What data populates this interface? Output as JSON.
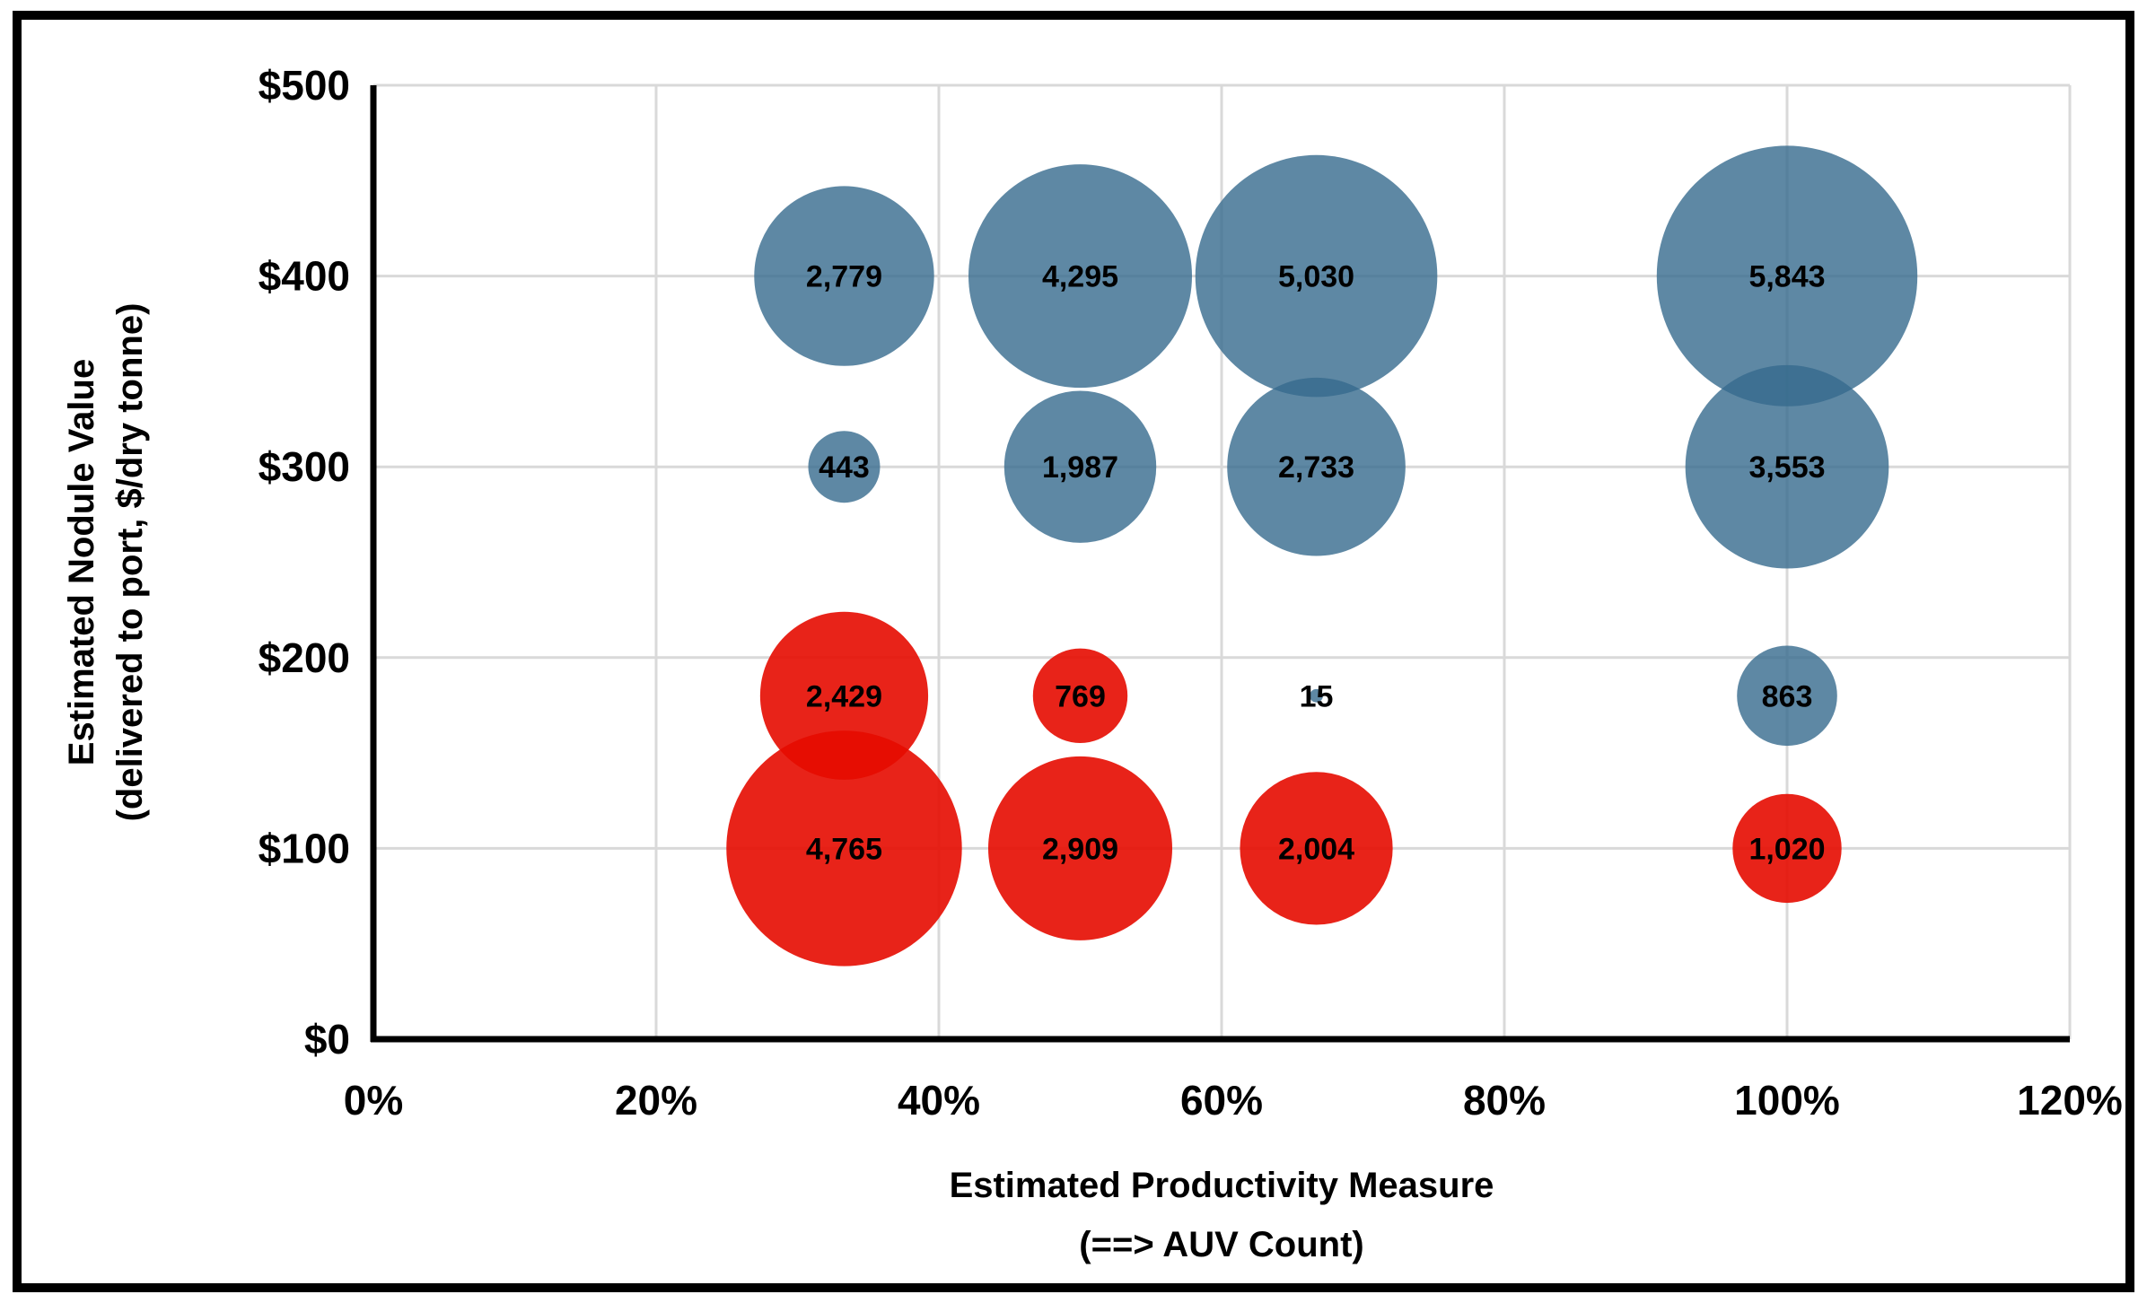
{
  "chart_data": {
    "type": "bubble",
    "title": "",
    "x_axis": {
      "title_lines": [
        "Estimated Productivity Measure",
        "(==> AUV Count)"
      ],
      "lim": [
        0,
        120
      ],
      "ticks": [
        {
          "v": 0,
          "label": "0%"
        },
        {
          "v": 20,
          "label": "20%"
        },
        {
          "v": 40,
          "label": "40%"
        },
        {
          "v": 60,
          "label": "60%"
        },
        {
          "v": 80,
          "label": "80%"
        },
        {
          "v": 100,
          "label": "100%"
        },
        {
          "v": 120,
          "label": "120%"
        }
      ]
    },
    "y_axis": {
      "title_lines": [
        "Estimated Nodule Value",
        "(delivered to port, $/dry tonne)"
      ],
      "lim": [
        0,
        500
      ],
      "ticks": [
        {
          "v": 0,
          "label": "$0"
        },
        {
          "v": 100,
          "label": "$100"
        },
        {
          "v": 200,
          "label": "$200"
        },
        {
          "v": 300,
          "label": "$300"
        },
        {
          "v": 400,
          "label": "$400"
        },
        {
          "v": 500,
          "label": "$500"
        }
      ]
    },
    "grid": true,
    "legend": false,
    "size_note": "bubble area proportional to value",
    "series": [
      {
        "name": "blue-favorable",
        "fill": "#366A8D",
        "fill_opacity": 0.8,
        "effective_color": "#5E88A4",
        "points": [
          {
            "x": 33.3,
            "y": 400,
            "value": 2779,
            "label": "2,779"
          },
          {
            "x": 50,
            "y": 400,
            "value": 4295,
            "label": "4,295"
          },
          {
            "x": 66.7,
            "y": 400,
            "value": 5030,
            "label": "5,030"
          },
          {
            "x": 100,
            "y": 400,
            "value": 5843,
            "label": "5,843"
          },
          {
            "x": 33.3,
            "y": 300,
            "value": 443,
            "label": "443"
          },
          {
            "x": 50,
            "y": 300,
            "value": 1987,
            "label": "1,987"
          },
          {
            "x": 66.7,
            "y": 300,
            "value": 2733,
            "label": "2,733"
          },
          {
            "x": 100,
            "y": 300,
            "value": 3553,
            "label": "3,553"
          },
          {
            "x": 66.7,
            "y": 180,
            "value": 15,
            "label": "15"
          },
          {
            "x": 100,
            "y": 180,
            "value": 863,
            "label": "863"
          }
        ]
      },
      {
        "name": "red-unfavorable",
        "fill": "#E50B00",
        "fill_opacity": 0.9,
        "effective_color": "#E82319",
        "points": [
          {
            "x": 33.3,
            "y": 180,
            "value": 2429,
            "label": "2,429"
          },
          {
            "x": 50,
            "y": 180,
            "value": 769,
            "label": "769"
          },
          {
            "x": 33.3,
            "y": 100,
            "value": 4765,
            "label": "4,765"
          },
          {
            "x": 50,
            "y": 100,
            "value": 2909,
            "label": "2,909"
          },
          {
            "x": 66.7,
            "y": 100,
            "value": 2004,
            "label": "2,004"
          },
          {
            "x": 100,
            "y": 100,
            "value": 1020,
            "label": "1,020"
          }
        ]
      }
    ],
    "colors": {
      "grid": "#D9D9D9",
      "axis": "#000000",
      "frame": "#000000",
      "label": "#000000",
      "background": "#FFFFFF"
    }
  }
}
